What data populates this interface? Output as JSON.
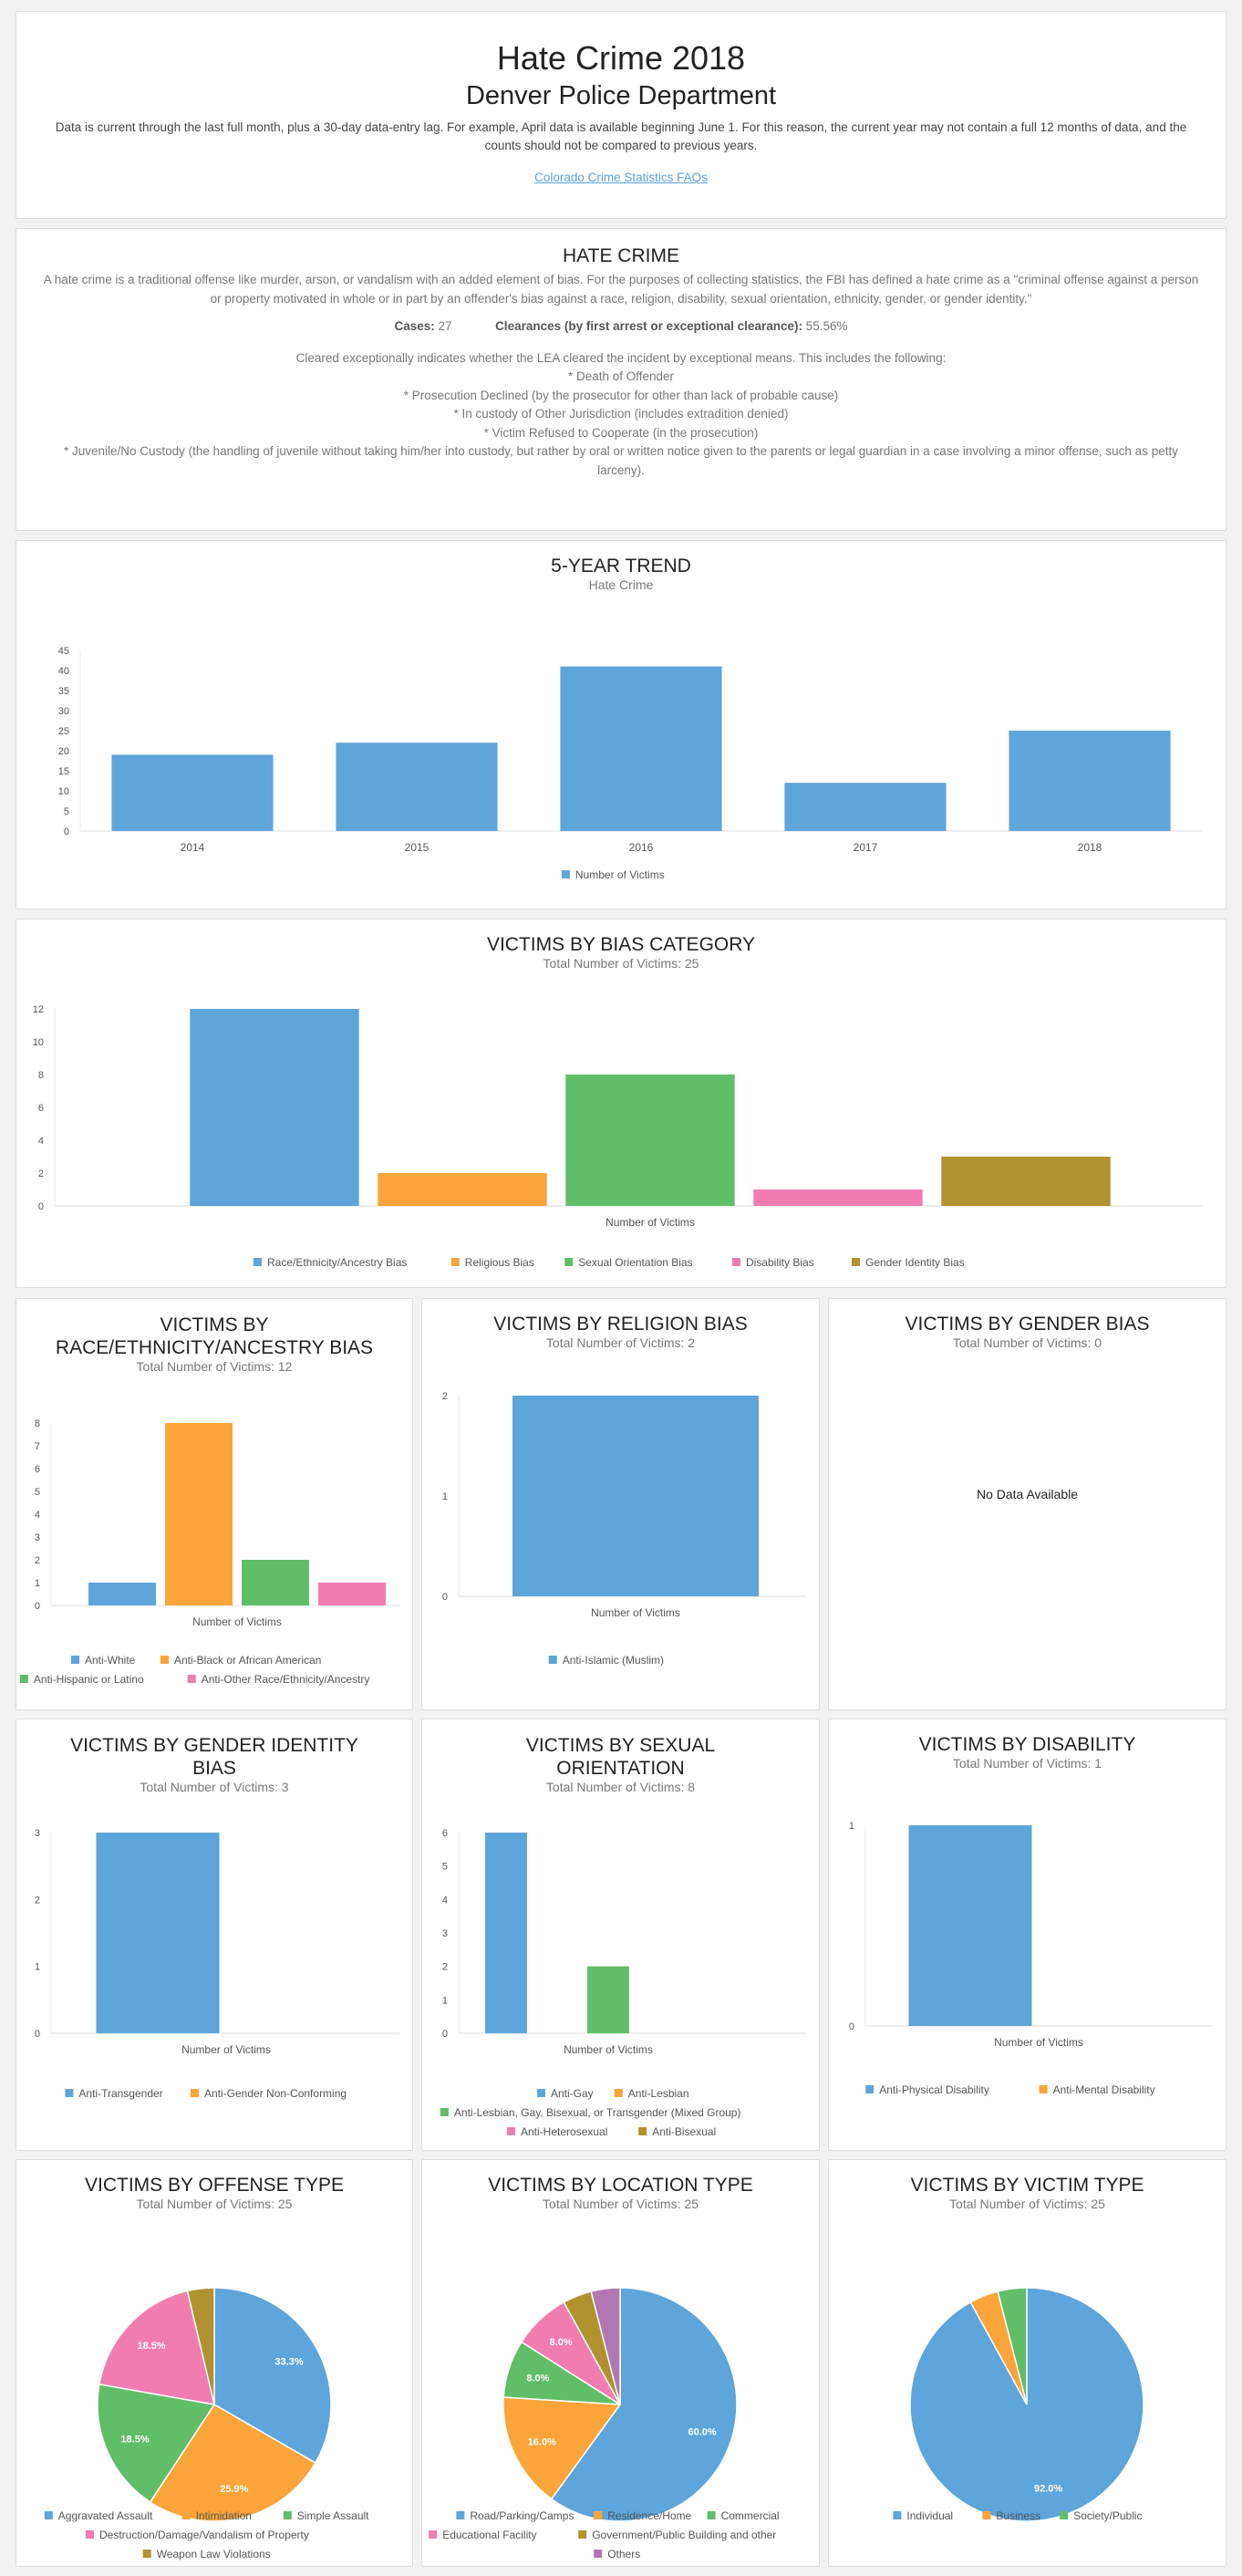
{
  "header": {
    "title": "Hate Crime 2018",
    "agency": "Denver Police Department",
    "note": "Data is current through the last full month, plus a 30-day data-entry lag. For example, April data is available beginning June 1. For this reason, the current year may not contain a full 12 months of data, and the counts should not be compared to previous years.",
    "faq_link": "Colorado Crime Statistics FAQs"
  },
  "info": {
    "title": "HATE CRIME",
    "description": "A hate crime is a traditional offense like murder, arson, or vandalism with an added element of bias. For the purposes of collecting statistics, the FBI has defined a hate crime as a \"criminal offense against a person or property motivated in whole or in part by an offender's bias against a race, religion, disability, sexual orientation, ethnicity, gender, or gender identity.\"",
    "cases_label": "Cases:",
    "cases_value": "27",
    "clearances_label": "Clearances (by first arrest or exceptional clearance):",
    "clearances_value": "55.56%",
    "cleared_intro": "Cleared exceptionally indicates whether the LEA cleared the incident by exceptional means. This includes the following:",
    "cleared_items": [
      "* Death of Offender",
      "* Prosecution Declined (by the prosecutor for other than lack of probable cause)",
      "* In custody of Other Jurisdiction (includes extradition denied)",
      "* Victim Refused to Cooperate (in the prosecution)",
      "* Juvenile/No Custody (the handling of juvenile without taking him/her into custody, but rather by oral or written notice given to the parents or legal guardian in a case involving a minor offense, such as petty larceny)."
    ]
  },
  "charts": {
    "trend": {
      "title": "5-YEAR TREND",
      "subtitle": "Hate Crime"
    },
    "bias": {
      "title": "VICTIMS BY BIAS CATEGORY",
      "subtitle": "Total Number of Victims: 25"
    },
    "race": {
      "title1": "VICTIMS BY",
      "title2": "RACE/ETHNICITY/ANCESTRY BIAS",
      "subtitle": "Total Number of Victims: 12"
    },
    "religion": {
      "title": "VICTIMS BY RELIGION BIAS",
      "subtitle": "Total Number of Victims: 2"
    },
    "gender": {
      "title": "VICTIMS BY GENDER BIAS",
      "subtitle": "Total Number of Victims: 0",
      "nodata": "No Data Available"
    },
    "genderid": {
      "title1": "VICTIMS BY GENDER IDENTITY",
      "title2": "BIAS",
      "subtitle": "Total Number of Victims: 3"
    },
    "sexual": {
      "title1": "VICTIMS BY SEXUAL",
      "title2": "ORIENTATION",
      "subtitle": "Total Number of Victims: 8"
    },
    "disability": {
      "title": "VICTIMS BY DISABILITY",
      "subtitle": "Total Number of Victims: 1"
    },
    "offense": {
      "title": "VICTIMS BY OFFENSE TYPE",
      "subtitle": "Total Number of Victims: 25"
    },
    "location": {
      "title": "VICTIMS BY LOCATION TYPE",
      "subtitle": "Total Number of Victims: 25"
    },
    "victim": {
      "title": "VICTIMS BY VICTIM TYPE",
      "subtitle": "Total Number of Victims: 25"
    }
  },
  "colors": {
    "blue": "#5da5da",
    "orange": "#faa43a",
    "green": "#60bd68",
    "pink": "#f17cb0",
    "olive": "#b2912f",
    "purple": "#b276b2"
  },
  "chart_data": [
    {
      "id": "trend",
      "type": "bar",
      "categories": [
        "2014",
        "2015",
        "2016",
        "2017",
        "2018"
      ],
      "series": [
        {
          "name": "Number of Victims",
          "values": [
            19,
            22,
            41,
            12,
            25
          ]
        }
      ],
      "ylim": [
        0,
        45
      ],
      "yticks": [
        0,
        5,
        10,
        15,
        20,
        25,
        30,
        35,
        40,
        45
      ],
      "legend_placement": "bottom"
    },
    {
      "id": "bias",
      "type": "bar",
      "xlabel": "Number of Victims",
      "series": [
        {
          "name": "Race/Ethnicity/Ancestry Bias",
          "values": [
            12
          ]
        },
        {
          "name": "Religious Bias",
          "values": [
            2
          ]
        },
        {
          "name": "Sexual Orientation Bias",
          "values": [
            8
          ]
        },
        {
          "name": "Disability Bias",
          "values": [
            1
          ]
        },
        {
          "name": "Gender Identity Bias",
          "values": [
            3
          ]
        }
      ],
      "ylim": [
        0,
        12
      ],
      "yticks": [
        0,
        2,
        4,
        6,
        8,
        10,
        12
      ],
      "legend_placement": "bottom"
    },
    {
      "id": "race",
      "type": "bar",
      "xlabel": "Number of Victims",
      "series": [
        {
          "name": "Anti-White",
          "values": [
            1
          ]
        },
        {
          "name": "Anti-Black or African American",
          "values": [
            8
          ]
        },
        {
          "name": "Anti-Hispanic or Latino",
          "values": [
            2
          ]
        },
        {
          "name": "Anti-Other Race/Ethnicity/Ancestry",
          "values": [
            1
          ]
        }
      ],
      "ylim": [
        0,
        8
      ],
      "yticks": [
        0,
        1,
        2,
        3,
        4,
        5,
        6,
        7,
        8
      ],
      "legend_placement": "bottom"
    },
    {
      "id": "religion",
      "type": "bar",
      "xlabel": "Number of Victims",
      "series": [
        {
          "name": "Anti-Islamic (Muslim)",
          "values": [
            2
          ]
        }
      ],
      "ylim": [
        0,
        2
      ],
      "yticks": [
        0,
        1,
        2
      ],
      "legend_placement": "bottom"
    },
    {
      "id": "genderid",
      "type": "bar",
      "xlabel": "Number of Victims",
      "series": [
        {
          "name": "Anti-Transgender",
          "values": [
            3
          ]
        },
        {
          "name": "Anti-Gender Non-Conforming",
          "values": [
            0
          ]
        }
      ],
      "ylim": [
        0,
        3
      ],
      "yticks": [
        0,
        1,
        2,
        3
      ],
      "legend_placement": "bottom"
    },
    {
      "id": "sexual",
      "type": "bar",
      "xlabel": "Number of Victims",
      "series": [
        {
          "name": "Anti-Gay",
          "values": [
            6
          ]
        },
        {
          "name": "Anti-Lesbian",
          "values": [
            0
          ]
        },
        {
          "name": "Anti-Lesbian, Gay, Bisexual, or Transgender (Mixed Group)",
          "values": [
            2
          ]
        },
        {
          "name": "Anti-Heterosexual",
          "values": [
            0
          ]
        },
        {
          "name": "Anti-Bisexual",
          "values": [
            0
          ]
        }
      ],
      "ylim": [
        0,
        6
      ],
      "yticks": [
        0,
        1,
        2,
        3,
        4,
        5,
        6
      ],
      "legend_placement": "bottom"
    },
    {
      "id": "disability",
      "type": "bar",
      "xlabel": "Number of Victims",
      "series": [
        {
          "name": "Anti-Physical Disability",
          "values": [
            1
          ]
        },
        {
          "name": "Anti-Mental Disability",
          "values": [
            0
          ]
        }
      ],
      "ylim": [
        0,
        1
      ],
      "yticks": [
        0,
        1
      ],
      "legend_placement": "bottom"
    },
    {
      "id": "offense",
      "type": "pie",
      "slices": [
        {
          "name": "Aggravated Assault",
          "value": 33.3,
          "label": "33.3%"
        },
        {
          "name": "Intimidation",
          "value": 25.9,
          "label": "25.9%"
        },
        {
          "name": "Simple Assault",
          "value": 18.5,
          "label": "18.5%"
        },
        {
          "name": "Destruction/Damage/Vandalism of Property",
          "value": 18.5,
          "label": "18.5%"
        },
        {
          "name": "Weapon Law Violations",
          "value": 3.7,
          "label": ""
        }
      ],
      "legend_placement": "bottom"
    },
    {
      "id": "location",
      "type": "pie",
      "slices": [
        {
          "name": "Road/Parking/Camps",
          "value": 60.0,
          "label": "60.0%"
        },
        {
          "name": "Residence/Home",
          "value": 16.0,
          "label": "16.0%"
        },
        {
          "name": "Commercial",
          "value": 8.0,
          "label": "8.0%"
        },
        {
          "name": "Educational Facility",
          "value": 8.0,
          "label": "8.0%"
        },
        {
          "name": "Government/Public Building and other",
          "value": 4.0,
          "label": ""
        },
        {
          "name": "Others",
          "value": 4.0,
          "label": ""
        }
      ],
      "legend_placement": "bottom"
    },
    {
      "id": "victim",
      "type": "pie",
      "slices": [
        {
          "name": "Individual",
          "value": 92.0,
          "label": "92.0%"
        },
        {
          "name": "Business",
          "value": 4.0,
          "label": ""
        },
        {
          "name": "Society/Public",
          "value": 4.0,
          "label": ""
        }
      ],
      "legend_placement": "bottom"
    }
  ]
}
